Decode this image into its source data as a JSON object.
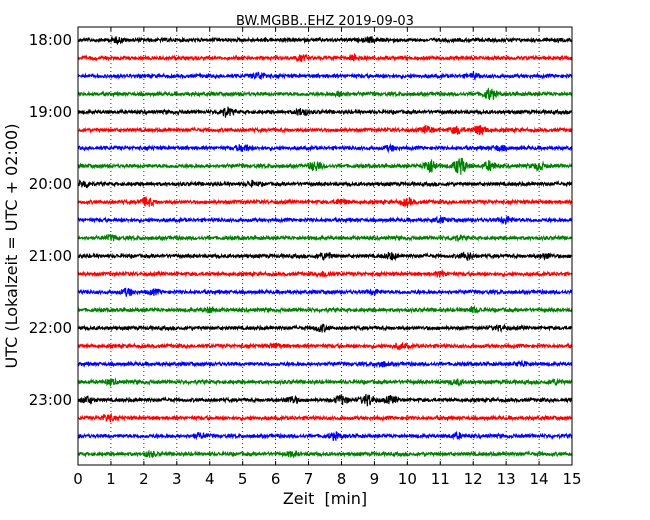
{
  "chart_data": {
    "type": "line",
    "title": "BW.MGBB..EHZ 2019-09-03",
    "xlabel": "Zeit  [min]",
    "ylabel": "UTC (Lokalzeit = UTC + 02:00)",
    "xlim": [
      0,
      15
    ],
    "x_ticks": [
      "0",
      "1",
      "2",
      "3",
      "4",
      "5",
      "6",
      "7",
      "8",
      "9",
      "10",
      "11",
      "12",
      "13",
      "14",
      "15"
    ],
    "y_ticks": [
      "18:00",
      "19:00",
      "20:00",
      "21:00",
      "22:00",
      "23:00"
    ],
    "traces_start": "18:00",
    "trace_interval_min": 15,
    "trace_count": 24,
    "grid": true,
    "series_colors": [
      "#000000",
      "#ff0000",
      "#0000ff",
      "#008000"
    ],
    "series": [
      {
        "start": "18:00",
        "color": "#000000",
        "bursts": [
          {
            "x": 1.2,
            "amp": 2
          },
          {
            "x": 8.9,
            "amp": 2
          }
        ]
      },
      {
        "start": "18:15",
        "color": "#ff0000",
        "bursts": [
          {
            "x": 6.8,
            "amp": 2
          },
          {
            "x": 8.4,
            "amp": 2
          }
        ]
      },
      {
        "start": "18:30",
        "color": "#0000ff",
        "bursts": [
          {
            "x": 5.5,
            "amp": 3
          },
          {
            "x": 12.0,
            "amp": 2
          }
        ]
      },
      {
        "start": "18:45",
        "color": "#008000",
        "bursts": [
          {
            "x": 12.5,
            "amp": 5
          },
          {
            "x": 8.0,
            "amp": 2
          }
        ]
      },
      {
        "start": "19:00",
        "color": "#000000",
        "bursts": [
          {
            "x": 4.5,
            "amp": 4
          },
          {
            "x": 6.8,
            "amp": 3
          }
        ]
      },
      {
        "start": "19:15",
        "color": "#ff0000",
        "bursts": [
          {
            "x": 10.6,
            "amp": 3
          },
          {
            "x": 12.2,
            "amp": 4
          },
          {
            "x": 11.5,
            "amp": 3
          }
        ]
      },
      {
        "start": "19:30",
        "color": "#0000ff",
        "bursts": [
          {
            "x": 5.0,
            "amp": 3
          },
          {
            "x": 9.5,
            "amp": 2
          },
          {
            "x": 12.8,
            "amp": 2
          }
        ]
      },
      {
        "start": "19:45",
        "color": "#008000",
        "bursts": [
          {
            "x": 7.2,
            "amp": 4
          },
          {
            "x": 10.7,
            "amp": 6
          },
          {
            "x": 11.6,
            "amp": 8
          },
          {
            "x": 12.5,
            "amp": 4
          },
          {
            "x": 14.0,
            "amp": 3
          }
        ]
      },
      {
        "start": "20:00",
        "color": "#000000",
        "bursts": [
          {
            "x": 0.2,
            "amp": 3
          },
          {
            "x": 5.3,
            "amp": 2
          }
        ]
      },
      {
        "start": "20:15",
        "color": "#ff0000",
        "bursts": [
          {
            "x": 2.1,
            "amp": 4
          },
          {
            "x": 10.0,
            "amp": 3
          },
          {
            "x": 8.0,
            "amp": 2
          }
        ]
      },
      {
        "start": "20:30",
        "color": "#0000ff",
        "bursts": [
          {
            "x": 13.0,
            "amp": 3
          },
          {
            "x": 11.0,
            "amp": 2
          }
        ]
      },
      {
        "start": "20:45",
        "color": "#008000",
        "bursts": [
          {
            "x": 1.0,
            "amp": 2
          },
          {
            "x": 11.5,
            "amp": 2
          }
        ]
      },
      {
        "start": "21:00",
        "color": "#000000",
        "bursts": [
          {
            "x": 7.5,
            "amp": 3
          },
          {
            "x": 9.5,
            "amp": 3
          },
          {
            "x": 11.8,
            "amp": 3
          },
          {
            "x": 14.2,
            "amp": 2
          }
        ]
      },
      {
        "start": "21:15",
        "color": "#ff0000",
        "bursts": [
          {
            "x": 7.5,
            "amp": 2
          },
          {
            "x": 11.0,
            "amp": 2
          }
        ]
      },
      {
        "start": "21:30",
        "color": "#0000ff",
        "bursts": [
          {
            "x": 1.5,
            "amp": 3
          },
          {
            "x": 2.3,
            "amp": 2
          },
          {
            "x": 9.0,
            "amp": 2
          }
        ]
      },
      {
        "start": "21:45",
        "color": "#008000",
        "bursts": [
          {
            "x": 4.0,
            "amp": 2
          },
          {
            "x": 12.0,
            "amp": 2
          }
        ]
      },
      {
        "start": "22:00",
        "color": "#000000",
        "bursts": [
          {
            "x": 7.4,
            "amp": 3
          },
          {
            "x": 12.8,
            "amp": 2
          }
        ]
      },
      {
        "start": "22:15",
        "color": "#ff0000",
        "bursts": [
          {
            "x": 6.0,
            "amp": 2
          },
          {
            "x": 9.8,
            "amp": 2
          }
        ]
      },
      {
        "start": "22:30",
        "color": "#0000ff",
        "bursts": [
          {
            "x": 9.2,
            "amp": 2
          },
          {
            "x": 13.5,
            "amp": 2
          }
        ]
      },
      {
        "start": "22:45",
        "color": "#008000",
        "bursts": [
          {
            "x": 1.0,
            "amp": 2
          },
          {
            "x": 11.5,
            "amp": 2
          },
          {
            "x": 14.5,
            "amp": 2
          }
        ]
      },
      {
        "start": "23:00",
        "color": "#000000",
        "bursts": [
          {
            "x": 0.3,
            "amp": 3
          },
          {
            "x": 8.0,
            "amp": 4
          },
          {
            "x": 8.8,
            "amp": 5
          },
          {
            "x": 9.5,
            "amp": 3
          },
          {
            "x": 6.5,
            "amp": 3
          }
        ]
      },
      {
        "start": "23:15",
        "color": "#ff0000",
        "bursts": [
          {
            "x": 0.9,
            "amp": 3
          }
        ]
      },
      {
        "start": "23:30",
        "color": "#0000ff",
        "bursts": [
          {
            "x": 3.7,
            "amp": 2
          },
          {
            "x": 7.8,
            "amp": 3
          },
          {
            "x": 11.5,
            "amp": 2
          }
        ]
      },
      {
        "start": "23:45",
        "color": "#008000",
        "bursts": [
          {
            "x": 2.2,
            "amp": 2
          },
          {
            "x": 6.5,
            "amp": 2
          }
        ]
      }
    ]
  }
}
